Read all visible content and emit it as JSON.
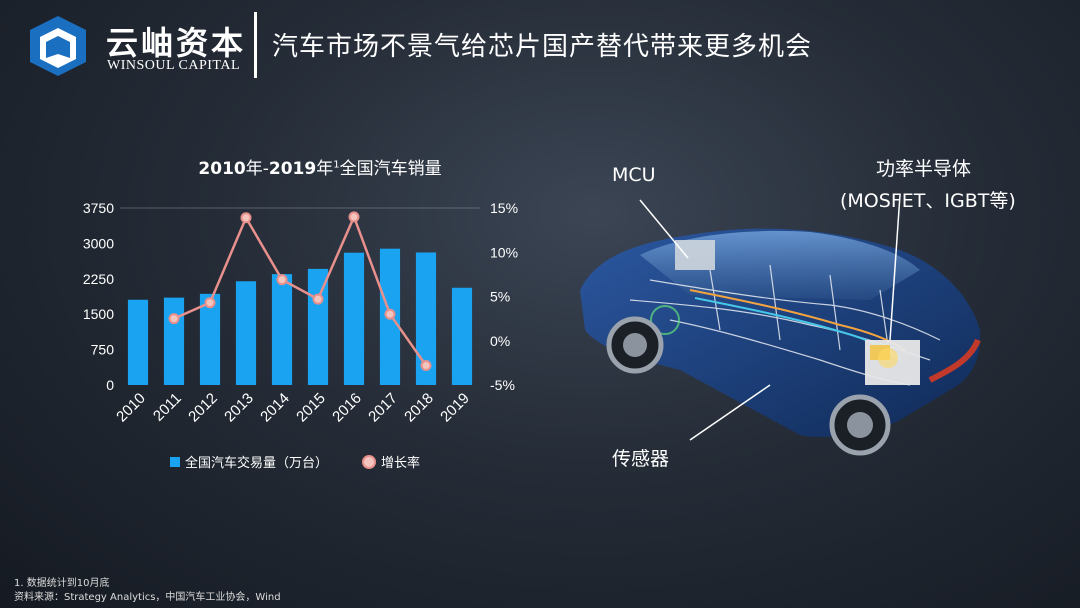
{
  "brand": {
    "name_cn": "云岫资本",
    "name_en": "WINSOUL CAPITAL"
  },
  "slide_title": "汽车市场不景气给芯片国产替代带来更多机会",
  "chart_data": {
    "type": "bar",
    "title_bold_1": "2010",
    "title_part_1": "年-",
    "title_bold_2": "2019",
    "title_part_2": "年",
    "title_sup": "1",
    "title_part_3": "全国汽车销量",
    "categories": [
      "2010",
      "2011",
      "2012",
      "2013",
      "2014",
      "2015",
      "2016",
      "2017",
      "2018",
      "2019"
    ],
    "series": [
      {
        "name": "全国汽车交易量（万台）",
        "type": "bar",
        "axis": "left",
        "color": "#1aa3f0",
        "values": [
          1806,
          1851,
          1931,
          2198,
          2349,
          2460,
          2803,
          2888,
          2808,
          2060
        ]
      },
      {
        "name": "增长率",
        "type": "line",
        "axis": "right",
        "color": "#e8908c",
        "values": [
          null,
          2.5,
          4.3,
          13.9,
          6.9,
          4.7,
          14.0,
          3.0,
          -2.8,
          null
        ]
      }
    ],
    "ylim_left": [
      0,
      3750
    ],
    "yticks_left": [
      "0",
      "750",
      "1500",
      "2250",
      "3000",
      "3750"
    ],
    "ylim_right": [
      -5,
      15
    ],
    "yticks_right": [
      "-5%",
      "0%",
      "5%",
      "10%",
      "15%"
    ],
    "legend_position": "bottom",
    "grid": false
  },
  "car_labels": {
    "mcu": "MCU",
    "power_1": "功率半导体",
    "power_2": "(MOSFET、IGBT等)",
    "sensor": "传感器"
  },
  "footnotes": {
    "note": "1. 数据统计到10月底",
    "source": "资料来源：Strategy Analytics，中国汽车工业协会，Wind"
  },
  "colors": {
    "bar": "#1aa3f0",
    "line": "#e8908c",
    "logo": "#1a6fc0"
  }
}
